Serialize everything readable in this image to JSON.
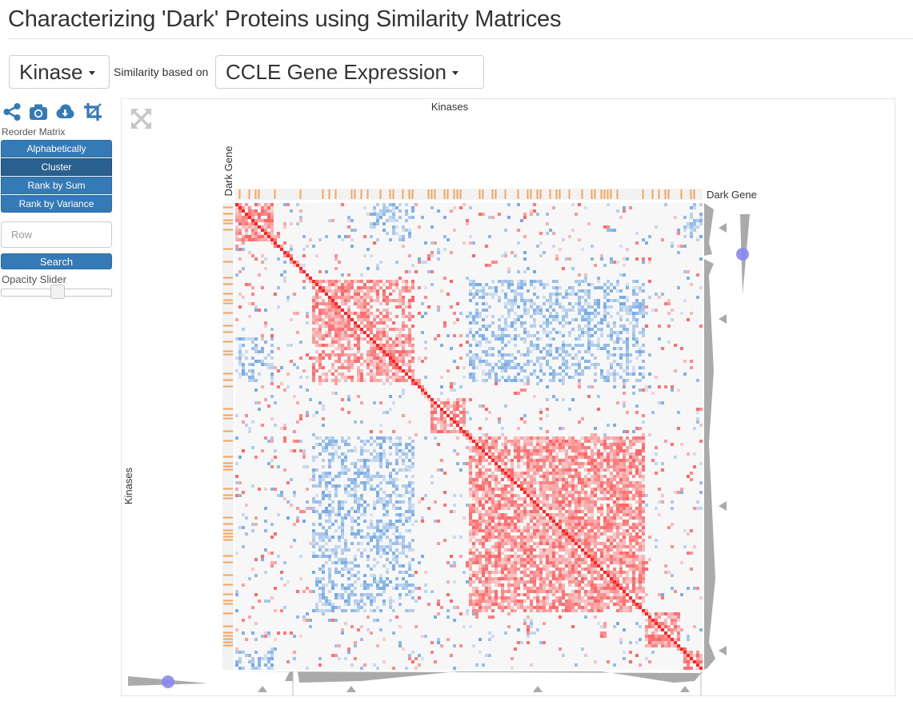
{
  "page": {
    "title": "Characterizing 'Dark' Proteins using Similarity Matrices"
  },
  "controls": {
    "category_value": "Kinase",
    "similarity_label": "Similarity based on",
    "similarity_value": "CCLE Gene Expression"
  },
  "toolbar": {
    "icons": [
      "share-icon",
      "camera-icon",
      "cloud-download-icon",
      "crop-icon"
    ]
  },
  "reorder": {
    "title": "Reorder Matrix",
    "buttons": [
      "Alphabetically",
      "Cluster",
      "Rank by Sum",
      "Rank by Variance"
    ],
    "active_index": 1
  },
  "search": {
    "placeholder": "Row",
    "button_label": "Search"
  },
  "opacity": {
    "label": "Opacity Slider",
    "value": 0.5
  },
  "matrix": {
    "title": "Kinases",
    "row_label": "Kinases",
    "col_category_label": "Dark Gene",
    "row_category_label": "Dark Gene",
    "colors": {
      "positive": "#ff0000",
      "negative": "#1c74d8",
      "dark_gene": "#f5a35c",
      "background": "#f7f7f7",
      "dendro": "#aaaaaa",
      "slider_dot": "#8888ee"
    }
  }
}
